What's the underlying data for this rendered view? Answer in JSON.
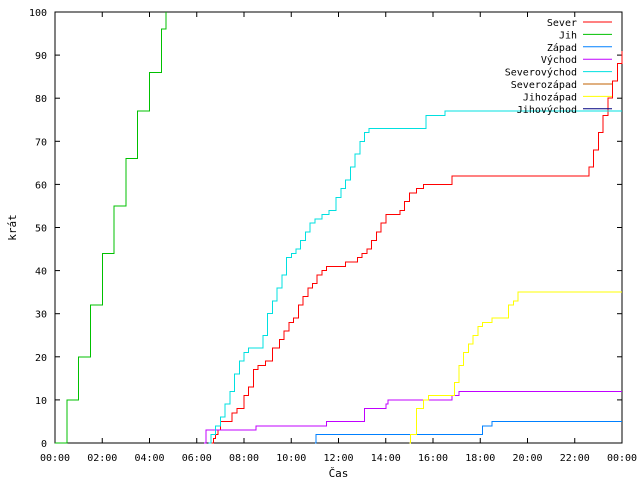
{
  "chart_data": {
    "type": "line",
    "title": "",
    "xlabel": "Čas",
    "ylabel": "krát",
    "xlim": [
      0,
      24
    ],
    "ylim": [
      0,
      100
    ],
    "grid": false,
    "legend_placement": "top-right",
    "x_tick_labels": [
      "00:00",
      "02:00",
      "04:00",
      "06:00",
      "08:00",
      "10:00",
      "12:00",
      "14:00",
      "16:00",
      "18:00",
      "20:00",
      "22:00",
      "00:00"
    ],
    "x_tick_values": [
      0,
      2,
      4,
      6,
      8,
      10,
      12,
      14,
      16,
      18,
      20,
      22,
      24
    ],
    "y_tick_values": [
      0,
      10,
      20,
      30,
      40,
      50,
      60,
      70,
      80,
      90,
      100
    ],
    "series": [
      {
        "name": "Sever",
        "color": "#ff0000",
        "points": [
          [
            6.6,
            0
          ],
          [
            6.7,
            1
          ],
          [
            6.8,
            2
          ],
          [
            6.9,
            3
          ],
          [
            7.0,
            5
          ],
          [
            7.3,
            5
          ],
          [
            7.5,
            7
          ],
          [
            7.7,
            8
          ],
          [
            7.9,
            8
          ],
          [
            8.0,
            11
          ],
          [
            8.2,
            13
          ],
          [
            8.4,
            17
          ],
          [
            8.6,
            18
          ],
          [
            8.9,
            19
          ],
          [
            9.2,
            22
          ],
          [
            9.5,
            24
          ],
          [
            9.7,
            26
          ],
          [
            9.9,
            28
          ],
          [
            10.1,
            29
          ],
          [
            10.3,
            32
          ],
          [
            10.5,
            34
          ],
          [
            10.7,
            36
          ],
          [
            10.9,
            37
          ],
          [
            11.1,
            39
          ],
          [
            11.3,
            40
          ],
          [
            11.5,
            41
          ],
          [
            11.7,
            41
          ],
          [
            12.1,
            41
          ],
          [
            12.3,
            42
          ],
          [
            12.8,
            43
          ],
          [
            13.0,
            44
          ],
          [
            13.2,
            45
          ],
          [
            13.4,
            47
          ],
          [
            13.6,
            49
          ],
          [
            13.8,
            51
          ],
          [
            14.0,
            53
          ],
          [
            14.3,
            53
          ],
          [
            14.6,
            54
          ],
          [
            14.8,
            56
          ],
          [
            15.0,
            58
          ],
          [
            15.3,
            59
          ],
          [
            15.6,
            60
          ],
          [
            16.2,
            60
          ],
          [
            16.8,
            62
          ],
          [
            17.5,
            62
          ],
          [
            18.0,
            62
          ],
          [
            19.0,
            62
          ],
          [
            20.0,
            62
          ],
          [
            21.0,
            62
          ],
          [
            22.4,
            62
          ],
          [
            22.6,
            64
          ],
          [
            22.8,
            68
          ],
          [
            23.0,
            72
          ],
          [
            23.2,
            76
          ],
          [
            23.4,
            80
          ],
          [
            23.6,
            84
          ],
          [
            23.8,
            88
          ],
          [
            24.0,
            91
          ]
        ]
      },
      {
        "name": "Jih",
        "color": "#00c000",
        "points": [
          [
            0.0,
            0
          ],
          [
            0.5,
            10
          ],
          [
            1.0,
            20
          ],
          [
            1.5,
            32
          ],
          [
            2.0,
            44
          ],
          [
            2.5,
            55
          ],
          [
            3.0,
            66
          ],
          [
            3.5,
            77
          ],
          [
            4.0,
            86
          ],
          [
            4.5,
            96
          ],
          [
            4.7,
            100
          ]
        ]
      },
      {
        "name": "Západ",
        "color": "#0080ff",
        "points": [
          [
            11.0,
            0
          ],
          [
            11.05,
            2
          ],
          [
            13.0,
            2
          ],
          [
            17.9,
            2
          ],
          [
            18.1,
            4
          ],
          [
            18.3,
            4
          ],
          [
            18.5,
            5
          ],
          [
            24.0,
            5
          ]
        ]
      },
      {
        "name": "Východ",
        "color": "#c000ff",
        "points": [
          [
            6.3,
            0
          ],
          [
            6.4,
            3
          ],
          [
            6.9,
            3
          ],
          [
            7.5,
            3
          ],
          [
            8.0,
            3
          ],
          [
            8.5,
            4
          ],
          [
            9.0,
            4
          ],
          [
            10.0,
            4
          ],
          [
            11.0,
            4
          ],
          [
            11.5,
            5
          ],
          [
            12.0,
            5
          ],
          [
            12.9,
            5
          ],
          [
            13.1,
            8
          ],
          [
            13.4,
            8
          ],
          [
            14.0,
            9
          ],
          [
            14.1,
            10
          ],
          [
            15.0,
            10
          ],
          [
            16.0,
            10
          ],
          [
            16.8,
            11
          ],
          [
            17.1,
            12
          ],
          [
            18.0,
            12
          ],
          [
            20.0,
            12
          ],
          [
            22.0,
            12
          ],
          [
            24.0,
            12
          ]
        ]
      },
      {
        "name": "Severovýchod",
        "color": "#00e0e0",
        "points": [
          [
            6.5,
            0
          ],
          [
            6.6,
            2
          ],
          [
            6.8,
            4
          ],
          [
            7.0,
            6
          ],
          [
            7.2,
            9
          ],
          [
            7.4,
            12
          ],
          [
            7.6,
            16
          ],
          [
            7.8,
            19
          ],
          [
            8.0,
            21
          ],
          [
            8.2,
            22
          ],
          [
            8.6,
            22
          ],
          [
            8.8,
            25
          ],
          [
            9.0,
            30
          ],
          [
            9.2,
            33
          ],
          [
            9.4,
            36
          ],
          [
            9.6,
            39
          ],
          [
            9.8,
            43
          ],
          [
            10.0,
            44
          ],
          [
            10.2,
            45
          ],
          [
            10.4,
            47
          ],
          [
            10.6,
            49
          ],
          [
            10.8,
            51
          ],
          [
            11.0,
            52
          ],
          [
            11.3,
            53
          ],
          [
            11.6,
            54
          ],
          [
            11.9,
            57
          ],
          [
            12.1,
            59
          ],
          [
            12.3,
            61
          ],
          [
            12.5,
            64
          ],
          [
            12.7,
            67
          ],
          [
            12.9,
            70
          ],
          [
            13.1,
            72
          ],
          [
            13.3,
            73
          ],
          [
            14.0,
            73
          ],
          [
            15.0,
            73
          ],
          [
            15.5,
            73
          ],
          [
            15.7,
            76
          ],
          [
            16.2,
            76
          ],
          [
            16.5,
            77
          ],
          [
            18.0,
            77
          ],
          [
            20.0,
            77
          ],
          [
            22.0,
            77
          ],
          [
            24.0,
            77
          ]
        ]
      },
      {
        "name": "Severozápad",
        "color": "#c06000",
        "points": []
      },
      {
        "name": "Jihozápad",
        "color": "#ffff00",
        "points": [
          [
            15.0,
            0
          ],
          [
            15.05,
            2
          ],
          [
            15.3,
            8
          ],
          [
            15.6,
            10
          ],
          [
            15.8,
            11
          ],
          [
            16.2,
            11
          ],
          [
            16.8,
            11
          ],
          [
            16.9,
            14
          ],
          [
            17.1,
            18
          ],
          [
            17.3,
            21
          ],
          [
            17.5,
            23
          ],
          [
            17.7,
            25
          ],
          [
            17.9,
            27
          ],
          [
            18.1,
            28
          ],
          [
            18.3,
            28
          ],
          [
            18.5,
            29
          ],
          [
            19.0,
            29
          ],
          [
            19.2,
            32
          ],
          [
            19.4,
            33
          ],
          [
            19.6,
            35
          ],
          [
            20.0,
            35
          ],
          [
            22.0,
            35
          ],
          [
            24.0,
            35
          ]
        ]
      },
      {
        "name": "Jihovýchod",
        "color": "#000080",
        "points": []
      }
    ]
  }
}
